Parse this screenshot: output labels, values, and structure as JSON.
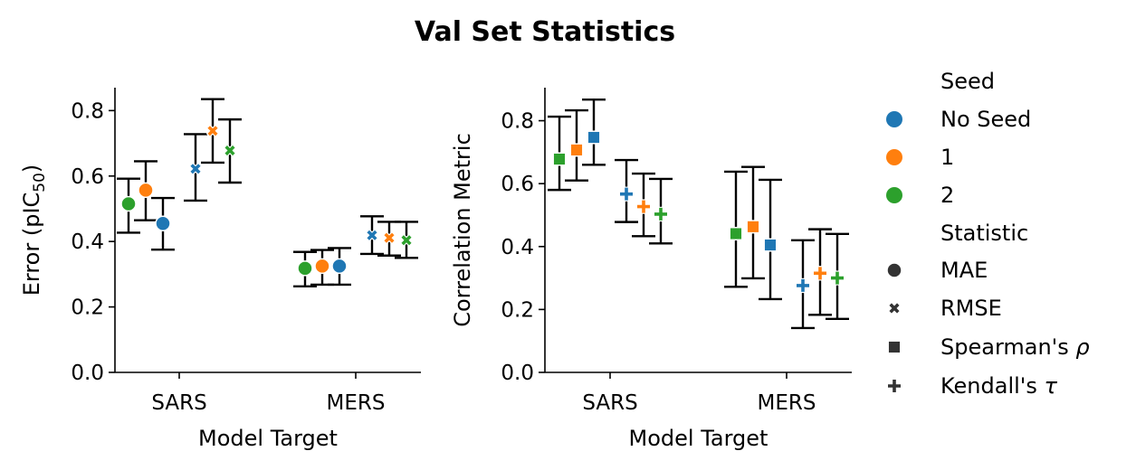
{
  "title": "Val Set Statistics",
  "colors": {
    "No Seed": "#1f77b4",
    "1": "#ff7f0e",
    "2": "#2ca02c",
    "errorbar": "#000000",
    "marker_edge": "#ffffff"
  },
  "legend": {
    "placement": "right, outside plots",
    "seed_title": "Seed",
    "seed_entries": [
      {
        "label": "No Seed",
        "color": "#1f77b4"
      },
      {
        "label": "1",
        "color": "#ff7f0e"
      },
      {
        "label": "2",
        "color": "#2ca02c"
      }
    ],
    "statistic_title": "Statistic",
    "statistic_entries": [
      {
        "label": "MAE",
        "marker": "circle"
      },
      {
        "label": "RMSE",
        "marker": "x"
      },
      {
        "label": "Spearman's",
        "symbol": "ρ",
        "marker": "square"
      },
      {
        "label": "Kendall's",
        "symbol": "τ",
        "marker": "plus"
      }
    ]
  },
  "chart_data": [
    {
      "type": "scatter",
      "panel": "left",
      "xlabel": "Model Target",
      "ylabel_main": "Error (pIC",
      "ylabel_sub": "50",
      "ylabel_end": ")",
      "categories": [
        "SARS",
        "MERS"
      ],
      "ylim": [
        0.0,
        0.87
      ],
      "yticks": [
        0.0,
        0.2,
        0.4,
        0.6,
        0.8
      ],
      "grid": false,
      "statistics": [
        "MAE",
        "RMSE"
      ],
      "series": [
        {
          "seed": "2",
          "statistic": "MAE",
          "values": [
            0.515,
            0.318
          ],
          "lower": [
            0.427,
            0.263
          ],
          "upper": [
            0.592,
            0.368
          ]
        },
        {
          "seed": "1",
          "statistic": "MAE",
          "values": [
            0.557,
            0.325
          ],
          "lower": [
            0.465,
            0.268
          ],
          "upper": [
            0.645,
            0.374
          ]
        },
        {
          "seed": "No Seed",
          "statistic": "MAE",
          "values": [
            0.455,
            0.325
          ],
          "lower": [
            0.375,
            0.268
          ],
          "upper": [
            0.533,
            0.38
          ]
        },
        {
          "seed": "No Seed",
          "statistic": "RMSE",
          "values": [
            0.622,
            0.419
          ],
          "lower": [
            0.525,
            0.362
          ],
          "upper": [
            0.728,
            0.477
          ]
        },
        {
          "seed": "1",
          "statistic": "RMSE",
          "values": [
            0.738,
            0.411
          ],
          "lower": [
            0.641,
            0.357
          ],
          "upper": [
            0.835,
            0.46
          ]
        },
        {
          "seed": "2",
          "statistic": "RMSE",
          "values": [
            0.678,
            0.404
          ],
          "lower": [
            0.58,
            0.35
          ],
          "upper": [
            0.773,
            0.46
          ]
        }
      ]
    },
    {
      "type": "scatter",
      "panel": "right",
      "xlabel": "Model Target",
      "ylabel": "Correlation Metric",
      "categories": [
        "SARS",
        "MERS"
      ],
      "ylim": [
        0.0,
        0.905
      ],
      "yticks": [
        0.0,
        0.2,
        0.4,
        0.6,
        0.8
      ],
      "grid": false,
      "statistics": [
        "Spearman's ρ",
        "Kendall's τ"
      ],
      "series": [
        {
          "seed": "2",
          "statistic": "Spearman's ρ",
          "values": [
            0.678,
            0.441
          ],
          "lower": [
            0.58,
            0.272
          ],
          "upper": [
            0.813,
            0.638
          ]
        },
        {
          "seed": "1",
          "statistic": "Spearman's ρ",
          "values": [
            0.707,
            0.463
          ],
          "lower": [
            0.61,
            0.299
          ],
          "upper": [
            0.833,
            0.653
          ]
        },
        {
          "seed": "No Seed",
          "statistic": "Spearman's ρ",
          "values": [
            0.747,
            0.405
          ],
          "lower": [
            0.66,
            0.233
          ],
          "upper": [
            0.867,
            0.612
          ]
        },
        {
          "seed": "No Seed",
          "statistic": "Kendall's τ",
          "values": [
            0.567,
            0.276
          ],
          "lower": [
            0.478,
            0.141
          ],
          "upper": [
            0.675,
            0.42
          ]
        },
        {
          "seed": "1",
          "statistic": "Kendall's τ",
          "values": [
            0.527,
            0.315
          ],
          "lower": [
            0.433,
            0.183
          ],
          "upper": [
            0.632,
            0.455
          ]
        },
        {
          "seed": "2",
          "statistic": "Kendall's τ",
          "values": [
            0.503,
            0.3
          ],
          "lower": [
            0.41,
            0.17
          ],
          "upper": [
            0.615,
            0.44
          ]
        }
      ]
    }
  ]
}
